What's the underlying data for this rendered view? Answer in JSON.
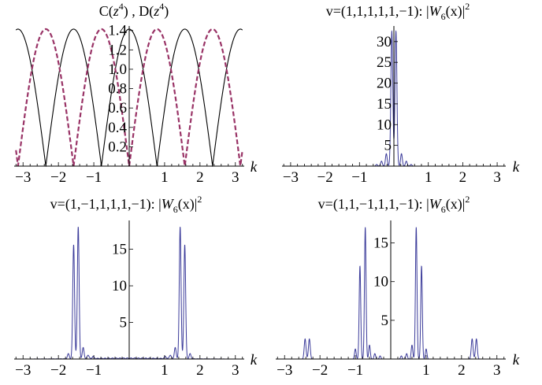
{
  "chart_data": [
    {
      "type": "line",
      "title_parts": [
        "C(",
        "z",
        "4",
        ")  ,  D(",
        "z",
        "4",
        ")"
      ],
      "xlabel": "k",
      "xlim": [
        -3.25,
        3.25
      ],
      "ylim": [
        0,
        1.414
      ],
      "x_ticks": [
        -3,
        -2,
        -1,
        1,
        2,
        3
      ],
      "x_tick_labels": [
        "−3",
        "−2",
        "−1",
        "1",
        "2",
        "3"
      ],
      "y_ticks": [
        0.2,
        0.4,
        0.6,
        0.8,
        1.0,
        1.2,
        1.4
      ],
      "y_tick_labels": [
        "0.2",
        "0.4",
        "0.6",
        "0.8",
        "1.0",
        "1.2",
        "1.4"
      ],
      "series": [
        {
          "name": "C(z^4)",
          "formula": "sqrt(2)*|cos(2k)|",
          "color": "#000000",
          "style": "solid"
        },
        {
          "name": "D(z^4)",
          "formula": "sqrt(2)*|sin(2k)|",
          "color": "#993366",
          "style": "dashed"
        }
      ]
    },
    {
      "type": "line",
      "title_parts": [
        "v=(1,1,1,1,1,−1):  |",
        "W",
        "6",
        "(x)|",
        "2"
      ],
      "xlabel": "k",
      "xlim": [
        -3.25,
        3.25
      ],
      "ylim": [
        0,
        33
      ],
      "x_ticks": [
        -3,
        -2,
        -1,
        1,
        2,
        3
      ],
      "x_tick_labels": [
        "−3",
        "−2",
        "−1",
        "1",
        "2",
        "3"
      ],
      "y_ticks": [
        5,
        10,
        15,
        20,
        25,
        30
      ],
      "y_tick_labels": [
        "5",
        "10",
        "15",
        "20",
        "25",
        "30"
      ],
      "color": "#3b3b9a",
      "peaks": [
        {
          "x": -0.06,
          "y": 32.5,
          "w": 0.028
        },
        {
          "x": 0.06,
          "y": 32.5,
          "w": 0.028
        },
        {
          "x": -0.22,
          "y": 3.0,
          "w": 0.025
        },
        {
          "x": 0.22,
          "y": 3.0,
          "w": 0.025
        },
        {
          "x": -0.36,
          "y": 1.2,
          "w": 0.025
        },
        {
          "x": 0.36,
          "y": 1.2,
          "w": 0.025
        },
        {
          "x": -0.5,
          "y": 0.4,
          "w": 0.025
        },
        {
          "x": 0.5,
          "y": 0.4,
          "w": 0.025
        }
      ]
    },
    {
      "type": "line",
      "title_parts": [
        "v=(1,−1,1,1,1,−1):  |",
        "W",
        "6",
        "(x)|",
        "2"
      ],
      "xlabel": "k",
      "xlim": [
        -3.25,
        3.25
      ],
      "ylim": [
        0,
        18.5
      ],
      "x_ticks": [
        -3,
        -2,
        -1,
        1,
        2,
        3
      ],
      "x_tick_labels": [
        "−3",
        "−2",
        "−1",
        "1",
        "2",
        "3"
      ],
      "y_ticks": [
        5,
        10,
        15
      ],
      "y_tick_labels": [
        "5",
        "10",
        "15"
      ],
      "color": "#3b3b9a",
      "peaks": [
        {
          "x": -1.57,
          "y": 15.6,
          "w": 0.025
        },
        {
          "x": -1.44,
          "y": 18.0,
          "w": 0.025
        },
        {
          "x": 1.44,
          "y": 18.0,
          "w": 0.025
        },
        {
          "x": 1.57,
          "y": 15.6,
          "w": 0.025
        },
        {
          "x": -1.72,
          "y": 0.7,
          "w": 0.025
        },
        {
          "x": -1.3,
          "y": 1.5,
          "w": 0.025
        },
        {
          "x": 1.3,
          "y": 1.5,
          "w": 0.025
        },
        {
          "x": 1.72,
          "y": 0.7,
          "w": 0.025
        },
        {
          "x": -1.16,
          "y": 0.5,
          "w": 0.025
        },
        {
          "x": 1.16,
          "y": 0.5,
          "w": 0.025
        },
        {
          "x": -1.02,
          "y": 0.3,
          "w": 0.025
        },
        {
          "x": 1.02,
          "y": 0.3,
          "w": 0.025
        }
      ],
      "ripple": 0.15
    },
    {
      "type": "line",
      "title_parts": [
        "v=(1,1,−1,1,1,−1):  |",
        "W",
        "6",
        "(x)|",
        "2"
      ],
      "xlabel": "k",
      "xlim": [
        -3.25,
        3.25
      ],
      "ylim": [
        0,
        17.5
      ],
      "x_ticks": [
        -3,
        -2,
        -1,
        1,
        2,
        3
      ],
      "x_tick_labels": [
        "−3",
        "−2",
        "−1",
        "1",
        "2",
        "3"
      ],
      "y_ticks": [
        5,
        10,
        15
      ],
      "y_tick_labels": [
        "5",
        "10",
        "15"
      ],
      "color": "#3b3b9a",
      "peaks": [
        {
          "x": -0.87,
          "y": 12.0,
          "w": 0.022
        },
        {
          "x": -0.72,
          "y": 17.0,
          "w": 0.022
        },
        {
          "x": 0.72,
          "y": 17.0,
          "w": 0.022
        },
        {
          "x": 0.87,
          "y": 12.0,
          "w": 0.022
        },
        {
          "x": -1.0,
          "y": 1.3,
          "w": 0.022
        },
        {
          "x": -0.6,
          "y": 1.8,
          "w": 0.022
        },
        {
          "x": 0.6,
          "y": 1.8,
          "w": 0.022
        },
        {
          "x": 1.0,
          "y": 1.3,
          "w": 0.022
        },
        {
          "x": -2.42,
          "y": 2.6,
          "w": 0.025
        },
        {
          "x": -2.3,
          "y": 2.6,
          "w": 0.025
        },
        {
          "x": 2.3,
          "y": 2.6,
          "w": 0.025
        },
        {
          "x": 2.42,
          "y": 2.6,
          "w": 0.025
        },
        {
          "x": -0.45,
          "y": 0.7,
          "w": 0.022
        },
        {
          "x": 0.45,
          "y": 0.7,
          "w": 0.022
        },
        {
          "x": -0.3,
          "y": 0.4,
          "w": 0.022
        },
        {
          "x": 0.3,
          "y": 0.4,
          "w": 0.022
        }
      ]
    }
  ]
}
